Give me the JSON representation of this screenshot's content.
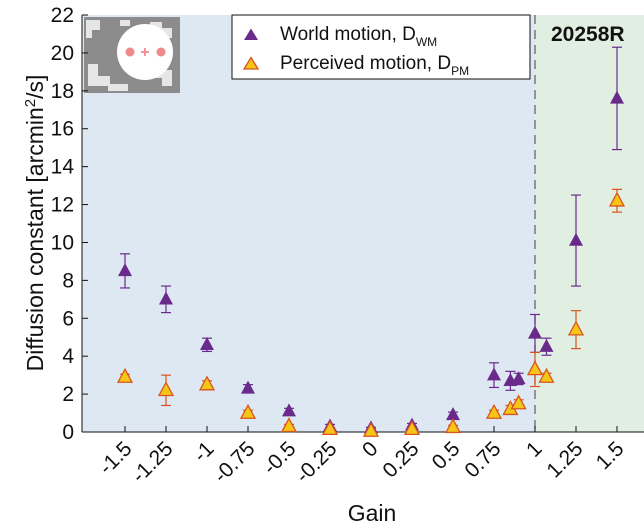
{
  "chart_data": {
    "type": "scatter",
    "panel_label": "20258R",
    "xlabel": "Gain",
    "ylabel": "Diffusion constant [arcmin",
    "ylabel_sup": "2",
    "ylabel_end": "/s]",
    "ylim": [
      0,
      22
    ],
    "yticks": [
      0,
      2,
      4,
      6,
      8,
      10,
      12,
      14,
      16,
      18,
      20,
      22
    ],
    "xticks": [
      -1.5,
      -1.25,
      -1,
      -0.75,
      -0.5,
      -0.25,
      0,
      0.25,
      0.5,
      0.75,
      1,
      1.25,
      1.5
    ],
    "xtick_labels": [
      "-1.5",
      "-1.25",
      "-1",
      "-0.75",
      "-0.5",
      "-0.25",
      "0",
      "0.25",
      "0.5",
      "0.75",
      "1",
      "1.25",
      "1.5"
    ],
    "legend_position": "top-center",
    "colors": {
      "region_left": "#dde8f3",
      "region_right": "#e1efe3",
      "world": "#6a2a8c",
      "perceived_fill": "#f5c518",
      "perceived_edge": "#d9541e",
      "divider": "#666666"
    },
    "series": [
      {
        "name": "World motion, D",
        "name_sub": "WM",
        "marker": "filled-triangle",
        "x": [
          -1.5,
          -1.25,
          -1,
          -0.75,
          -0.5,
          -0.25,
          0,
          0.25,
          0.5,
          0.75,
          0.85,
          0.9,
          1,
          1.07,
          1.25,
          1.5
        ],
        "y": [
          8.5,
          7.0,
          4.6,
          2.3,
          1.1,
          0.3,
          0.2,
          0.35,
          0.9,
          3.0,
          2.7,
          2.8,
          5.2,
          4.5,
          10.1,
          17.6
        ],
        "err": [
          0.9,
          0.7,
          0.35,
          0.2,
          0.15,
          0.1,
          0.05,
          0.1,
          0.15,
          0.65,
          0.5,
          0.3,
          1.0,
          0.45,
          2.4,
          2.7
        ]
      },
      {
        "name": "Perceived motion, D",
        "name_sub": "PM",
        "marker": "open-triangle",
        "x": [
          -1.5,
          -1.25,
          -1,
          -0.75,
          -0.5,
          -0.25,
          0,
          0.25,
          0.5,
          0.75,
          0.85,
          0.9,
          1,
          1.07,
          1.25,
          1.5
        ],
        "y": [
          2.9,
          2.2,
          2.5,
          1.0,
          0.3,
          0.15,
          0.05,
          0.15,
          0.25,
          1.0,
          1.2,
          1.5,
          3.3,
          2.9,
          5.4,
          12.2
        ],
        "err": [
          0.15,
          0.8,
          0.2,
          0.15,
          0.1,
          0.05,
          0.05,
          0.05,
          0.1,
          0.15,
          0.2,
          0.2,
          0.9,
          0.2,
          1.0,
          0.6
        ]
      }
    ]
  }
}
